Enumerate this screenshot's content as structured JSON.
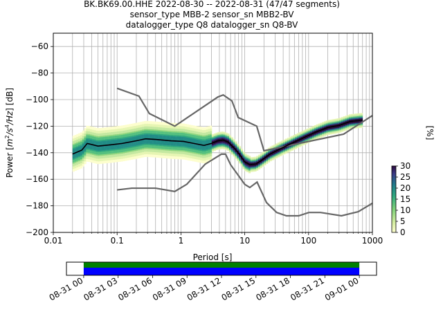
{
  "chart_data": {
    "type": "heatmap",
    "title_lines": [
      "BK.BK69.00.HHE   2022-08-30 -- 2022-08-31  (47/47 segments)",
      "sensor_type MBB-2 sensor_sn MBB2-BV",
      "datalogger_type Q8 datalogger_sn Q8-BV"
    ],
    "xlabel": "Period [s]",
    "ylabel_parts": [
      "Power [",
      "m",
      "2",
      "/s",
      "4",
      "/Hz",
      "] [dB]"
    ],
    "xscale": "log",
    "xlim": [
      0.01,
      1000
    ],
    "ylim": [
      -200,
      -50
    ],
    "grid": true,
    "x_ticks": [
      {
        "value": 0.01,
        "label": "0.01"
      },
      {
        "value": 0.1,
        "label": "0.1"
      },
      {
        "value": 1,
        "label": "1"
      },
      {
        "value": 10,
        "label": "10"
      },
      {
        "value": 100,
        "label": "100"
      },
      {
        "value": 1000,
        "label": "1000"
      }
    ],
    "y_ticks": [
      {
        "value": -60,
        "label": "−60"
      },
      {
        "value": -80,
        "label": "−80"
      },
      {
        "value": -100,
        "label": "−100"
      },
      {
        "value": -120,
        "label": "−120"
      },
      {
        "value": -140,
        "label": "−140"
      },
      {
        "value": -160,
        "label": "−160"
      },
      {
        "value": -180,
        "label": "−180"
      },
      {
        "value": -200,
        "label": "−200"
      }
    ],
    "nhnm": [
      [
        0.1,
        -91.5
      ],
      [
        0.22,
        -97.4
      ],
      [
        0.32,
        -110.5
      ],
      [
        0.8,
        -120
      ],
      [
        3.8,
        -98
      ],
      [
        4.6,
        -96.5
      ],
      [
        6.3,
        -101
      ],
      [
        7.9,
        -113.5
      ],
      [
        15.4,
        -120
      ],
      [
        20,
        -138.5
      ],
      [
        354,
        -126
      ],
      [
        1000,
        -112
      ]
    ],
    "nlnm": [
      [
        0.1,
        -168
      ],
      [
        0.17,
        -166.7
      ],
      [
        0.4,
        -166.7
      ],
      [
        0.8,
        -169.2
      ],
      [
        1.24,
        -163.7
      ],
      [
        2.4,
        -148.6
      ],
      [
        4.3,
        -141.1
      ],
      [
        5,
        -141.1
      ],
      [
        6,
        -149
      ],
      [
        10,
        -163.8
      ],
      [
        12,
        -166.2
      ],
      [
        15.6,
        -162.1
      ],
      [
        21.9,
        -177.5
      ],
      [
        31.6,
        -185
      ],
      [
        45,
        -187.5
      ],
      [
        70,
        -187.5
      ],
      [
        101,
        -185
      ],
      [
        154,
        -185
      ],
      [
        328,
        -187.5
      ],
      [
        600,
        -184.4
      ],
      [
        1000,
        -178
      ]
    ],
    "mean_curve": [
      [
        0.02,
        -141
      ],
      [
        0.028,
        -138
      ],
      [
        0.034,
        -133
      ],
      [
        0.05,
        -135
      ],
      [
        0.08,
        -134
      ],
      [
        0.12,
        -133
      ],
      [
        0.2,
        -131
      ],
      [
        0.28,
        -129.5
      ],
      [
        0.4,
        -130
      ],
      [
        0.7,
        -131
      ],
      [
        1.1,
        -131.5
      ],
      [
        1.6,
        -133
      ],
      [
        2.3,
        -134.5
      ],
      [
        3,
        -133
      ],
      [
        3.8,
        -131
      ],
      [
        4.6,
        -130.5
      ],
      [
        5.5,
        -132
      ],
      [
        7,
        -137
      ],
      [
        8.5,
        -142
      ],
      [
        10,
        -147
      ],
      [
        12,
        -149
      ],
      [
        15,
        -148.5
      ],
      [
        18,
        -146
      ],
      [
        25,
        -141
      ],
      [
        40,
        -136
      ],
      [
        60,
        -132
      ],
      [
        90,
        -128
      ],
      [
        130,
        -124.5
      ],
      [
        200,
        -121
      ],
      [
        300,
        -119.5
      ],
      [
        450,
        -116.5
      ],
      [
        700,
        -115.5
      ]
    ],
    "colorbar": {
      "label": "[%]",
      "min": 0,
      "max": 30,
      "ticks": [
        0,
        5,
        10,
        15,
        20,
        25,
        30
      ]
    },
    "timeline": {
      "tick_labels": [
        "08-31 00",
        "08-31 03",
        "08-31 06",
        "08-31 09",
        "08-31 12",
        "08-31 15",
        "08-31 18",
        "08-31 21",
        "09-01 00"
      ],
      "start_hour": -1.5,
      "end_hour": 25.5,
      "data_start_hour": 0,
      "data_end_hour": 24,
      "bar_colors": {
        "green": "#008000",
        "blue": "#0000ff"
      }
    },
    "colors": {
      "model_lines": "#666666",
      "mean_curve": "#000000",
      "grid": "#b0b0b0"
    }
  }
}
